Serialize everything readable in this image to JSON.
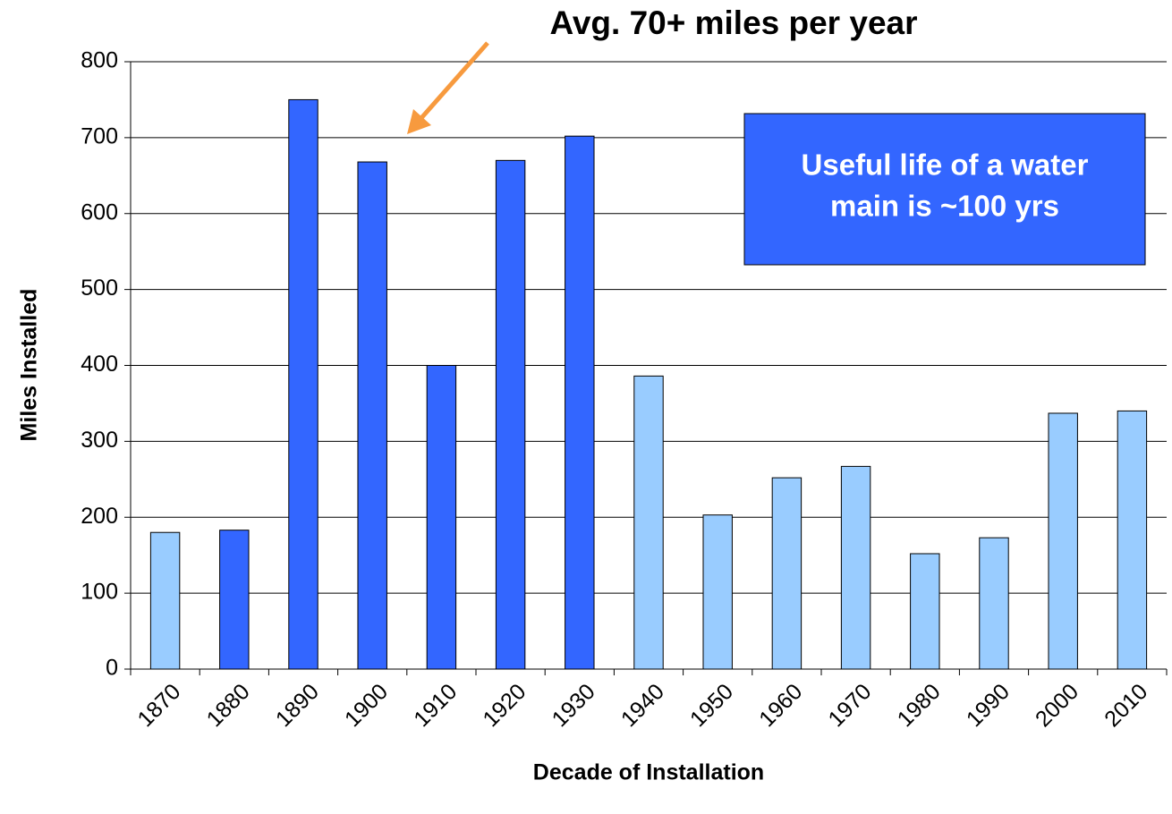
{
  "chart_data": {
    "type": "bar",
    "xlabel": "Decade of Installation",
    "ylabel": "Miles Installed",
    "categories": [
      "1870",
      "1880",
      "1890",
      "1900",
      "1910",
      "1920",
      "1930",
      "1940",
      "1950",
      "1960",
      "1970",
      "1980",
      "1990",
      "2000",
      "2010"
    ],
    "values": [
      180,
      183,
      750,
      668,
      400,
      670,
      702,
      386,
      203,
      252,
      267,
      152,
      173,
      337,
      340
    ],
    "colors": [
      "#99ccff",
      "#3366ff",
      "#3366ff",
      "#3366ff",
      "#3366ff",
      "#3366ff",
      "#3366ff",
      "#99ccff",
      "#99ccff",
      "#99ccff",
      "#99ccff",
      "#99ccff",
      "#99ccff",
      "#99ccff",
      "#99ccff"
    ],
    "ylim": [
      0,
      800
    ],
    "yticks": [
      0,
      100,
      200,
      300,
      400,
      500,
      600,
      700,
      800
    ],
    "grid": true,
    "annotation": "Avg. 70+ miles per year",
    "annotation_color": "#f79a3e",
    "callout": [
      "Useful life of a water",
      "main is ~100 yrs"
    ],
    "callout_color": "#3366ff"
  }
}
